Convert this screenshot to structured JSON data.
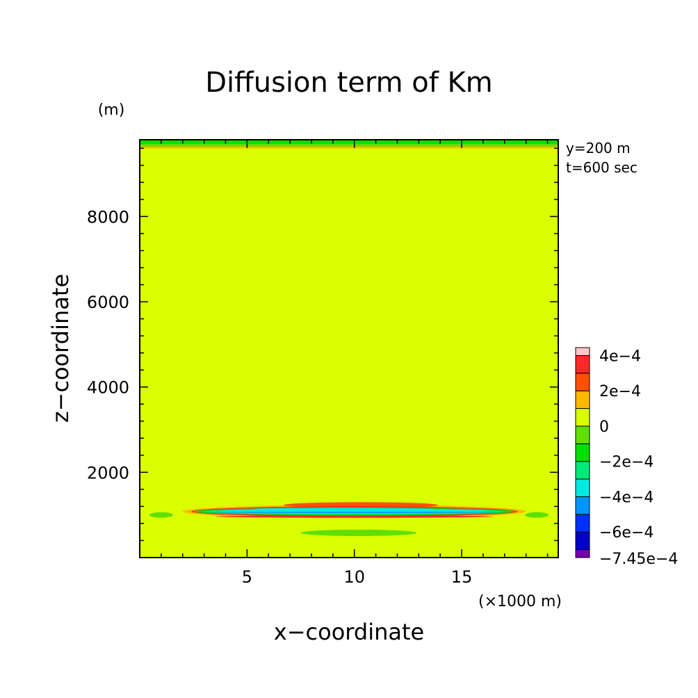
{
  "chart_data": {
    "type": "heatmap",
    "title": "Diffusion term of Km",
    "xlabel": "x−coordinate",
    "ylabel": "z−coordinate",
    "x_unit": "(×1000 m)",
    "y_unit": "(m)",
    "xlim": [
      0,
      19.5
    ],
    "ylim": [
      0,
      9800
    ],
    "xticks": [
      "5",
      "10",
      "15"
    ],
    "yticks": [
      "2000",
      "4000",
      "6000",
      "8000"
    ],
    "xtick_values": [
      5,
      10,
      15
    ],
    "ytick_values": [
      2000,
      4000,
      6000,
      8000
    ],
    "annotations": [
      "y=200 m",
      "t=600 sec"
    ],
    "background_color": "#d9ff00",
    "colorbar": {
      "levels": [
        {
          "color": "#7a00b0"
        },
        {
          "color": "#0000c8",
          "label": "−6e−4"
        },
        {
          "color": "#0030ff"
        },
        {
          "color": "#0096ff",
          "label": "−4e−4"
        },
        {
          "color": "#00e8e0"
        },
        {
          "color": "#00e878",
          "label": "−2e−4"
        },
        {
          "color": "#00e000"
        },
        {
          "color": "#60e000",
          "label": "0"
        },
        {
          "color": "#d9ff00"
        },
        {
          "color": "#ffb800",
          "label": "2e−4"
        },
        {
          "color": "#ff5000"
        },
        {
          "color": "#ff2828",
          "label": "4e−4"
        },
        {
          "color": "#ffc8c8"
        }
      ],
      "min_label": "−7.45e−4"
    },
    "contour_regions": [
      {
        "name": "top-boundary-green",
        "shape": "rect",
        "x0": 0,
        "x1": 19.5,
        "z0": 9640,
        "z1": 9800,
        "color": "#60e000"
      },
      {
        "name": "top-boundary-dark-green",
        "shape": "rect",
        "x0": 0,
        "x1": 19.5,
        "z0": 9700,
        "z1": 9780,
        "color": "#00e000"
      },
      {
        "name": "top-boundary-orange",
        "shape": "rect",
        "x0": 0,
        "x1": 19.5,
        "z0": 9600,
        "z1": 9640,
        "color": "#ffb800"
      },
      {
        "name": "left-small-green",
        "shape": "ellipse",
        "cx": 1.0,
        "cz": 1000,
        "rx": 0.55,
        "rz": 65,
        "color": "#60e000"
      },
      {
        "name": "right-small-green",
        "shape": "ellipse",
        "cx": 18.5,
        "cz": 1000,
        "rx": 0.55,
        "rz": 65,
        "color": "#60e000"
      },
      {
        "name": "lower-green-band",
        "shape": "ellipse",
        "cx": 10.2,
        "cz": 580,
        "rx": 2.7,
        "rz": 75,
        "color": "#60e000"
      },
      {
        "name": "main-orange-outer",
        "shape": "ellipse",
        "cx": 10.0,
        "cz": 1080,
        "rx": 8.0,
        "rz": 160,
        "color": "#ffb800"
      },
      {
        "name": "upper-red-arc",
        "shape": "ellipse",
        "cx": 10.3,
        "cz": 1230,
        "rx": 3.6,
        "rz": 70,
        "color": "#ff5000"
      },
      {
        "name": "main-red-band",
        "shape": "ellipse",
        "cx": 10.0,
        "cz": 1080,
        "rx": 7.6,
        "rz": 120,
        "color": "#ff2828"
      },
      {
        "name": "main-green-band",
        "shape": "ellipse",
        "cx": 10.0,
        "cz": 1080,
        "rx": 7.5,
        "rz": 90,
        "color": "#00e000"
      },
      {
        "name": "main-teal-band",
        "shape": "ellipse",
        "cx": 10.0,
        "cz": 1080,
        "rx": 7.0,
        "rz": 70,
        "color": "#00e878"
      },
      {
        "name": "main-cyan-core",
        "shape": "ellipse",
        "cx": 10.0,
        "cz": 1090,
        "rx": 6.3,
        "rz": 55,
        "color": "#00e8e0"
      },
      {
        "name": "main-blue-line",
        "shape": "ellipse",
        "cx": 10.0,
        "cz": 1060,
        "rx": 6.8,
        "rz": 14,
        "color": "#0096ff"
      },
      {
        "name": "inner-cyan-upper",
        "shape": "ellipse",
        "cx": 9.5,
        "cz": 1140,
        "rx": 4.2,
        "rz": 28,
        "color": "#00e8e0"
      },
      {
        "name": "lower-red-band",
        "shape": "ellipse",
        "cx": 10.0,
        "cz": 960,
        "rx": 6.5,
        "rz": 25,
        "color": "#ff2828"
      }
    ]
  }
}
